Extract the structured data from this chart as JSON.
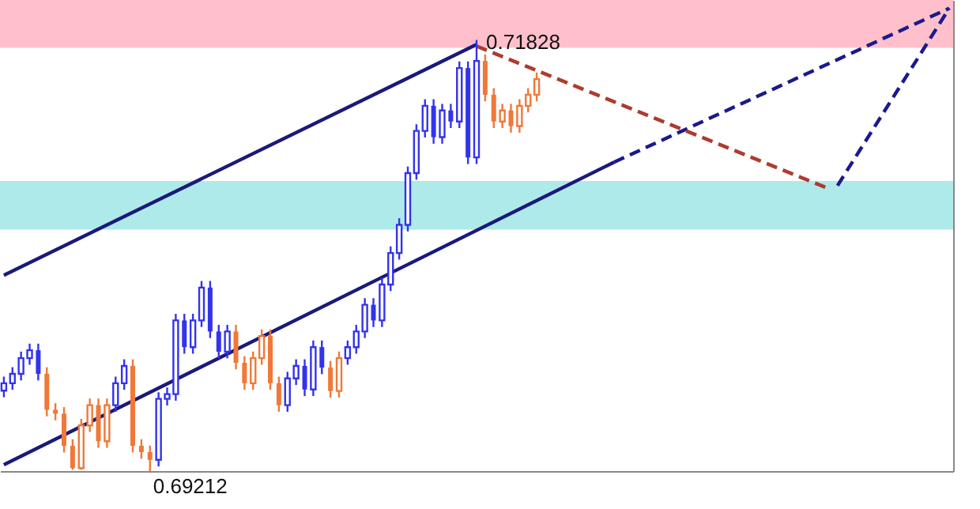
{
  "chart_data": {
    "type": "candlestick",
    "categories": [
      null,
      null,
      null,
      null,
      null,
      null,
      null,
      null,
      null,
      null,
      null,
      null,
      null,
      null,
      null,
      null,
      null,
      null,
      null,
      null,
      null,
      null,
      null,
      null,
      null,
      null,
      null,
      null,
      null,
      null,
      null,
      null,
      null,
      null,
      null,
      null,
      null,
      null,
      null,
      null,
      null,
      null,
      null,
      null,
      null,
      null,
      null,
      null,
      null,
      null,
      null,
      null,
      null,
      null,
      null,
      null,
      null,
      null,
      null,
      null,
      null,
      null,
      null,
      null,
      null,
      null,
      null,
      null,
      null,
      null,
      null,
      null,
      null,
      null,
      null,
      null,
      null,
      null,
      null,
      null,
      null,
      null,
      null,
      null,
      null,
      null,
      null,
      null,
      null,
      null,
      null,
      null,
      null,
      null,
      null,
      null,
      null,
      null,
      null,
      null,
      null,
      null,
      null,
      null,
      null,
      null,
      null,
      null,
      null,
      null,
      null
    ],
    "ohlc": [
      [
        0.697,
        0.69785,
        0.6966,
        0.69745
      ],
      [
        0.69745,
        0.69842,
        0.69705,
        0.69802
      ],
      [
        0.69802,
        0.69937,
        0.69762,
        0.69897
      ],
      [
        0.69897,
        0.69985,
        0.69857,
        0.69945
      ],
      [
        0.69945,
        0.69985,
        0.69762,
        0.69802
      ],
      [
        0.69802,
        0.69842,
        0.69544,
        0.69584
      ],
      [
        0.69584,
        0.69624,
        0.6952,
        0.6956
      ],
      [
        0.6956,
        0.696,
        0.69325,
        0.69365
      ],
      [
        0.69365,
        0.69405,
        0.6922,
        0.6923
      ],
      [
        0.6923,
        0.69529,
        0.6922,
        0.69489
      ],
      [
        0.69489,
        0.69652,
        0.69449,
        0.69612
      ],
      [
        0.69612,
        0.69652,
        0.69353,
        0.69393
      ],
      [
        0.69393,
        0.69652,
        0.69353,
        0.69612
      ],
      [
        0.69612,
        0.69785,
        0.69572,
        0.69745
      ],
      [
        0.69745,
        0.6989,
        0.69705,
        0.6985
      ],
      [
        0.6985,
        0.6989,
        0.69325,
        0.69365
      ],
      [
        0.69365,
        0.69405,
        0.69287,
        0.69327
      ],
      [
        0.69327,
        0.69367,
        0.69212,
        0.6928
      ],
      [
        0.6928,
        0.6969,
        0.6924,
        0.6965
      ],
      [
        0.6965,
        0.69719,
        0.6961,
        0.69679
      ],
      [
        0.69679,
        0.70166,
        0.69639,
        0.70126
      ],
      [
        0.70126,
        0.70166,
        0.69924,
        0.69964
      ],
      [
        0.69964,
        0.70166,
        0.69924,
        0.70126
      ],
      [
        0.70126,
        0.70365,
        0.70086,
        0.70325
      ],
      [
        0.70325,
        0.70365,
        0.70019,
        0.70059
      ],
      [
        0.70059,
        0.70099,
        0.69896,
        0.69936
      ],
      [
        0.69936,
        0.70099,
        0.69896,
        0.70059
      ],
      [
        0.70059,
        0.70099,
        0.69829,
        0.69869
      ],
      [
        0.69869,
        0.69909,
        0.69705,
        0.69745
      ],
      [
        0.69745,
        0.69937,
        0.69705,
        0.69897
      ],
      [
        0.69897,
        0.70071,
        0.69857,
        0.70031
      ],
      [
        0.70031,
        0.70071,
        0.69705,
        0.69745
      ],
      [
        0.69745,
        0.69785,
        0.69572,
        0.69612
      ],
      [
        0.69612,
        0.69814,
        0.69572,
        0.69774
      ],
      [
        0.69774,
        0.6989,
        0.69734,
        0.6985
      ],
      [
        0.6985,
        0.6989,
        0.69667,
        0.69707
      ],
      [
        0.69707,
        0.70004,
        0.69667,
        0.69964
      ],
      [
        0.69964,
        0.70004,
        0.698,
        0.6984
      ],
      [
        0.6984,
        0.6988,
        0.69658,
        0.69698
      ],
      [
        0.69698,
        0.69937,
        0.69658,
        0.69897
      ],
      [
        0.69897,
        0.70004,
        0.69857,
        0.69964
      ],
      [
        0.69964,
        0.70099,
        0.69924,
        0.70059
      ],
      [
        0.70059,
        0.70261,
        0.70019,
        0.70221
      ],
      [
        0.70221,
        0.70261,
        0.70086,
        0.70126
      ],
      [
        0.70126,
        0.70384,
        0.70086,
        0.70344
      ],
      [
        0.70344,
        0.70575,
        0.70304,
        0.70535
      ],
      [
        0.70535,
        0.70746,
        0.70495,
        0.70706
      ],
      [
        0.70706,
        0.7106,
        0.70666,
        0.7102
      ],
      [
        0.7102,
        0.71316,
        0.7098,
        0.71276
      ],
      [
        0.71276,
        0.71468,
        0.71236,
        0.71428
      ],
      [
        0.71428,
        0.71468,
        0.71198,
        0.71238
      ],
      [
        0.71238,
        0.7144,
        0.71198,
        0.714
      ],
      [
        0.714,
        0.7144,
        0.71293,
        0.71333
      ],
      [
        0.71333,
        0.71697,
        0.71293,
        0.71657
      ],
      [
        0.71657,
        0.71697,
        0.71075,
        0.71115
      ],
      [
        0.71115,
        0.71828,
        0.71075,
        0.717
      ],
      [
        0.717,
        0.7174,
        0.71455,
        0.71495
      ],
      [
        0.71495,
        0.71535,
        0.71293,
        0.71333
      ],
      [
        0.71333,
        0.7144,
        0.71293,
        0.714
      ],
      [
        0.714,
        0.7144,
        0.71265,
        0.71305
      ],
      [
        0.71305,
        0.71468,
        0.71265,
        0.71428
      ],
      [
        0.71428,
        0.71535,
        0.71388,
        0.71495
      ],
      [
        0.71495,
        0.7163,
        0.71455,
        0.7159
      ],
      null,
      null,
      null,
      null,
      null,
      null,
      null,
      null,
      null,
      null,
      null,
      null,
      null,
      null,
      null,
      null,
      null,
      null,
      null,
      null,
      null,
      null,
      null,
      null,
      null,
      null,
      null,
      null,
      null,
      null,
      null,
      null,
      null,
      null,
      null,
      null,
      null,
      null,
      null,
      null,
      null,
      null,
      null,
      null,
      null,
      null,
      null,
      null
    ],
    "colors": [
      "#3333ee",
      "#3333ee",
      "#3333ee",
      "#3333ee",
      "#3333ee",
      "#f07838",
      "#f07838",
      "#f07838",
      "#f07838",
      "#f07838",
      "#f07838",
      "#f07838",
      "#f07838",
      "#3333ee",
      "#3333ee",
      "#f07838",
      "#f07838",
      "#f07838",
      "#3333ee",
      "#3333ee",
      "#3333ee",
      "#3333ee",
      "#3333ee",
      "#3333ee",
      "#3333ee",
      "#3333ee",
      "#3333ee",
      "#f07838",
      "#f07838",
      "#f07838",
      "#f07838",
      "#f07838",
      "#f07838",
      "#3333ee",
      "#3333ee",
      "#3333ee",
      "#3333ee",
      "#3333ee",
      "#f07838",
      "#f07838",
      "#3333ee",
      "#3333ee",
      "#3333ee",
      "#3333ee",
      "#3333ee",
      "#3333ee",
      "#3333ee",
      "#3333ee",
      "#3333ee",
      "#3333ee",
      "#3333ee",
      "#3333ee",
      "#3333ee",
      "#3333ee",
      "#3333ee",
      "#3333ee",
      "#f07838",
      "#f07838",
      "#f07838",
      "#f07838",
      "#f07838",
      "#f07838",
      "#f07838",
      null,
      null,
      null,
      null,
      null,
      null,
      null,
      null,
      null,
      null,
      null,
      null,
      null,
      null,
      null,
      null,
      null,
      null,
      null,
      null,
      null,
      null,
      null,
      null,
      null,
      null,
      null,
      null,
      null,
      null,
      null,
      null,
      null,
      null,
      null,
      null,
      null,
      null,
      null,
      null,
      null,
      null,
      null,
      null,
      null,
      null,
      null,
      null
    ],
    "series": [
      {
        "type": "line",
        "color": "#1a1a7a",
        "line_style": "solid",
        "values": [
          0.704,
          null,
          null,
          null,
          null,
          null,
          null,
          null,
          null,
          null,
          null,
          null,
          null,
          null,
          null,
          null,
          null,
          null,
          null,
          null,
          null,
          null,
          null,
          null,
          null,
          null,
          null,
          null,
          null,
          null,
          null,
          null,
          null,
          null,
          null,
          null,
          null,
          null,
          null,
          null,
          null,
          null,
          null,
          null,
          null,
          null,
          null,
          null,
          null,
          null,
          null,
          null,
          null,
          null,
          null,
          0.718,
          null,
          null,
          null,
          null,
          null,
          null,
          null,
          null,
          null,
          null,
          null,
          null,
          null,
          null,
          null,
          null,
          null,
          null,
          null,
          null,
          null,
          null,
          null,
          null,
          null,
          null,
          null,
          null,
          null,
          null,
          null,
          null,
          null,
          null,
          null,
          null,
          null,
          null,
          null,
          null,
          null,
          null,
          null,
          null,
          null,
          null,
          null,
          null,
          null,
          null,
          null,
          null,
          null,
          null,
          null
        ]
      },
      {
        "type": "line",
        "color": "#1a1a7a",
        "line_style": "solid",
        "values": [
          0.6925,
          null,
          null,
          null,
          null,
          null,
          null,
          null,
          null,
          null,
          null,
          null,
          null,
          null,
          null,
          null,
          null,
          null,
          null,
          null,
          null,
          null,
          null,
          null,
          null,
          null,
          null,
          null,
          null,
          null,
          null,
          null,
          null,
          null,
          null,
          null,
          null,
          null,
          null,
          null,
          null,
          null,
          null,
          null,
          null,
          null,
          null,
          null,
          null,
          null,
          null,
          null,
          null,
          null,
          null,
          null,
          null,
          null,
          null,
          null,
          null,
          null,
          null,
          null,
          null,
          null,
          null,
          null,
          null,
          null,
          null,
          0.71086,
          null,
          null,
          null,
          null,
          null,
          null,
          null,
          null,
          null,
          null,
          null,
          null,
          null,
          null,
          null,
          null,
          null,
          null,
          null,
          null,
          null,
          null,
          null,
          null,
          null,
          null,
          null,
          null,
          null,
          null,
          null,
          null,
          null,
          null,
          null,
          null,
          null,
          null,
          null
        ]
      },
      {
        "type": "line",
        "color": "#1a1a8c",
        "line_style": "dashed",
        "values": [
          null,
          null,
          null,
          null,
          null,
          null,
          null,
          null,
          null,
          null,
          null,
          null,
          null,
          null,
          null,
          null,
          null,
          null,
          null,
          null,
          null,
          null,
          null,
          null,
          null,
          null,
          null,
          null,
          null,
          null,
          null,
          null,
          null,
          null,
          null,
          null,
          null,
          null,
          null,
          null,
          null,
          null,
          null,
          null,
          null,
          null,
          null,
          null,
          null,
          null,
          null,
          null,
          null,
          null,
          null,
          null,
          null,
          null,
          null,
          null,
          null,
          null,
          null,
          null,
          null,
          null,
          null,
          null,
          null,
          null,
          null,
          0.71086,
          null,
          null,
          null,
          null,
          null,
          null,
          null,
          null,
          null,
          null,
          null,
          null,
          null,
          null,
          null,
          null,
          null,
          null,
          null,
          null,
          null,
          null,
          null,
          null,
          null,
          null,
          null,
          null,
          null,
          null,
          null,
          null,
          null,
          null,
          null,
          null,
          null,
          null,
          0.7202
        ]
      },
      {
        "type": "line",
        "color": "#b03a2e",
        "line_style": "dashed",
        "values": [
          null,
          null,
          null,
          null,
          null,
          null,
          null,
          null,
          null,
          null,
          null,
          null,
          null,
          null,
          null,
          null,
          null,
          null,
          null,
          null,
          null,
          null,
          null,
          null,
          null,
          null,
          null,
          null,
          null,
          null,
          null,
          null,
          null,
          null,
          null,
          null,
          null,
          null,
          null,
          null,
          null,
          null,
          null,
          null,
          null,
          null,
          null,
          null,
          null,
          null,
          null,
          null,
          null,
          null,
          null,
          0.7179,
          null,
          null,
          null,
          null,
          null,
          null,
          null,
          null,
          null,
          null,
          null,
          null,
          null,
          null,
          null,
          null,
          null,
          null,
          null,
          null,
          null,
          null,
          null,
          null,
          null,
          null,
          null,
          null,
          null,
          null,
          null,
          null,
          null,
          null,
          null,
          null,
          null,
          null,
          null,
          null,
          0.70925,
          null,
          null,
          null,
          null,
          null,
          null,
          null,
          null,
          null,
          null,
          null,
          null,
          null,
          null
        ]
      },
      {
        "type": "line",
        "color": "#1a1a8c",
        "line_style": "dashed",
        "values": [
          null,
          null,
          null,
          null,
          null,
          null,
          null,
          null,
          null,
          null,
          null,
          null,
          null,
          null,
          null,
          null,
          null,
          null,
          null,
          null,
          null,
          null,
          null,
          null,
          null,
          null,
          null,
          null,
          null,
          null,
          null,
          null,
          null,
          null,
          null,
          null,
          null,
          null,
          null,
          null,
          null,
          null,
          null,
          null,
          null,
          null,
          null,
          null,
          null,
          null,
          null,
          null,
          null,
          null,
          null,
          null,
          null,
          null,
          null,
          null,
          null,
          null,
          null,
          null,
          null,
          null,
          null,
          null,
          null,
          null,
          null,
          null,
          null,
          null,
          null,
          null,
          null,
          null,
          null,
          null,
          null,
          null,
          null,
          null,
          null,
          null,
          null,
          null,
          null,
          null,
          null,
          null,
          null,
          null,
          null,
          null,
          null,
          0.70944,
          null,
          null,
          null,
          null,
          null,
          null,
          null,
          null,
          null,
          null,
          null,
          null,
          0.7202
        ]
      }
    ],
    "bands": [
      {
        "axis": "y",
        "from": 0.7178,
        "to": 0.7207,
        "color": "#ffc0cb"
      },
      {
        "axis": "y",
        "from": 0.70677,
        "to": 0.70972,
        "color": "#aeeaea"
      }
    ],
    "annotations": [
      "0.71828",
      "0.69212"
    ],
    "tick_labels": false
  }
}
